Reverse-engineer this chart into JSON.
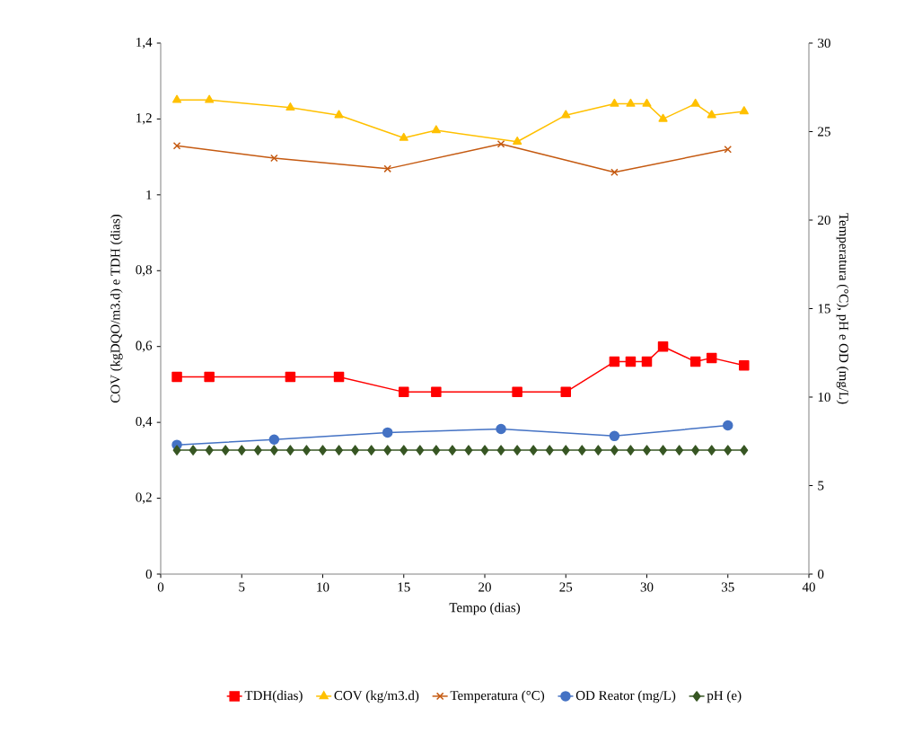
{
  "chart_data": {
    "type": "line",
    "xlabel": "Tempo (dias)",
    "ylabel": "COV (kgDQO/m3.d) e TDH (dias)",
    "y2label": "Temperatura (°C), pH e OD (mg/L)",
    "xlim": [
      0,
      40
    ],
    "xticks": [
      0,
      5,
      10,
      15,
      20,
      25,
      30,
      35,
      40
    ],
    "ylim": [
      0,
      1.4
    ],
    "yticks": [
      0,
      {
        "value": 0.2,
        "label": "0,2"
      },
      {
        "value": 0.4,
        "label": "0,4"
      },
      {
        "value": 0.6,
        "label": "0,6"
      },
      {
        "value": 0.8,
        "label": "0,8"
      },
      1,
      {
        "value": 1.2,
        "label": "1,2"
      },
      {
        "value": 1.4,
        "label": "1,4"
      }
    ],
    "y2lim": [
      0,
      30
    ],
    "y2ticks": [
      0,
      5,
      10,
      15,
      20,
      25,
      30
    ],
    "grid": false,
    "legend": "bottom",
    "line_style": "solid",
    "series": [
      {
        "name": "TDH(dias)",
        "color": "#ff0000",
        "marker": "square",
        "x": [
          1,
          3,
          8,
          11,
          15,
          17,
          22,
          25,
          28,
          29,
          30,
          31,
          33,
          34,
          36
        ],
        "values": [
          0.52,
          0.52,
          0.52,
          0.52,
          0.48,
          0.48,
          0.48,
          0.48,
          0.56,
          0.56,
          0.56,
          0.6,
          0.56,
          0.57,
          0.55
        ]
      },
      {
        "name": "COV (kg/m3.d)",
        "color": "#ffc000",
        "marker": "triangle",
        "x": [
          1,
          3,
          8,
          11,
          15,
          17,
          22,
          25,
          28,
          29,
          30,
          31,
          33,
          34,
          36
        ],
        "values": [
          1.25,
          1.25,
          1.23,
          1.21,
          1.15,
          1.17,
          1.14,
          1.21,
          1.24,
          1.24,
          1.24,
          1.2,
          1.24,
          1.21,
          1.22
        ]
      },
      {
        "name": "Temperatura (°C)",
        "color": "#c55a11",
        "marker": "cross",
        "axis": "y2",
        "x": [
          1,
          7,
          14,
          21,
          28,
          35
        ],
        "values": [
          24.2,
          23.5,
          22.9,
          24.3,
          22.7,
          24.0
        ]
      },
      {
        "name": "OD Reator (mg/L)",
        "color": "#4472c4",
        "marker": "circle",
        "axis": "y2",
        "x": [
          1,
          7,
          14,
          21,
          28,
          35
        ],
        "values": [
          7.3,
          7.6,
          8.0,
          8.2,
          7.8,
          8.4
        ]
      },
      {
        "name": "pH (e)",
        "color": "#375623",
        "marker": "diamond",
        "axis": "y2",
        "x": [
          1,
          2,
          3,
          4,
          5,
          6,
          7,
          8,
          9,
          10,
          11,
          12,
          13,
          14,
          15,
          16,
          17,
          18,
          19,
          20,
          21,
          22,
          23,
          24,
          25,
          26,
          27,
          28,
          29,
          30,
          31,
          32,
          33,
          34,
          35,
          36
        ],
        "values": [
          7,
          7,
          7,
          7,
          7,
          7,
          7,
          7,
          7,
          7,
          7,
          7,
          7,
          7,
          7,
          7,
          7,
          7,
          7,
          7,
          7,
          7,
          7,
          7,
          7,
          7,
          7,
          7,
          7,
          7,
          7,
          7,
          7,
          7,
          7,
          7
        ]
      }
    ]
  }
}
